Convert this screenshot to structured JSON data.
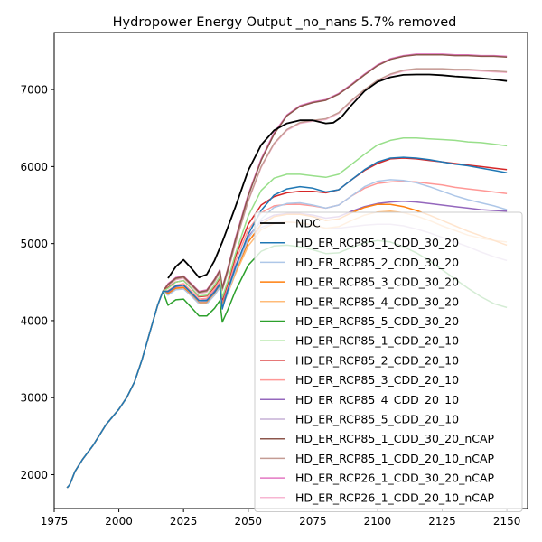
{
  "chart_data": {
    "type": "line",
    "title": "Hydropower Energy Output _no_nans 5.7% removed",
    "xlabel": "",
    "ylabel": "",
    "xlim": [
      1975,
      2158
    ],
    "ylim": [
      1560,
      7740
    ],
    "xticks": [
      1975,
      2000,
      2025,
      2050,
      2075,
      2100,
      2125,
      2150
    ],
    "yticks": [
      2000,
      3000,
      4000,
      5000,
      6000,
      7000
    ],
    "grid": false,
    "legend_position": "lower-right",
    "base": {
      "x": [
        1980,
        1981,
        1983,
        1986,
        1990,
        1995,
        2000,
        2003,
        2006,
        2009,
        2012,
        2015,
        2017,
        2019
      ],
      "y": [
        1830,
        1870,
        2040,
        2200,
        2380,
        2650,
        2850,
        3000,
        3200,
        3500,
        3850,
        4200,
        4380,
        4520
      ]
    },
    "series": [
      {
        "name": "NDC",
        "color": "#000000",
        "x": [
          2019,
          2022,
          2025,
          2028,
          2031,
          2034,
          2037,
          2040,
          2045,
          2050,
          2055,
          2060,
          2065,
          2070,
          2075,
          2080,
          2083,
          2086,
          2090,
          2095,
          2100,
          2105,
          2110,
          2115,
          2120,
          2125,
          2130,
          2135,
          2140,
          2145,
          2150
        ],
        "y": [
          4550,
          4700,
          4790,
          4680,
          4560,
          4600,
          4780,
          5020,
          5470,
          5950,
          6280,
          6470,
          6560,
          6600,
          6600,
          6560,
          6570,
          6640,
          6800,
          6980,
          7100,
          7160,
          7190,
          7195,
          7195,
          7185,
          7170,
          7160,
          7145,
          7130,
          7110
        ]
      },
      {
        "name": "HD_ER_RCP85_1_CDD_30_20",
        "color": "#1f77b4",
        "x": [
          2019,
          2022,
          2025,
          2028,
          2031,
          2034,
          2037,
          2039,
          2040,
          2042,
          2045,
          2050,
          2055,
          2060,
          2065,
          2070,
          2075,
          2080,
          2085,
          2090,
          2095,
          2100,
          2105,
          2110,
          2115,
          2120,
          2125,
          2130,
          2135,
          2140,
          2145,
          2150
        ],
        "y": [
          4380,
          4450,
          4460,
          4360,
          4260,
          4260,
          4370,
          4470,
          4150,
          4380,
          4680,
          5120,
          5430,
          5630,
          5710,
          5740,
          5720,
          5670,
          5700,
          5830,
          5960,
          6060,
          6110,
          6120,
          6110,
          6090,
          6060,
          6030,
          6010,
          5980,
          5950,
          5920
        ]
      },
      {
        "name": "HD_ER_RCP85_2_CDD_30_20",
        "color": "#aec7e8",
        "x": [
          2019,
          2022,
          2025,
          2028,
          2031,
          2034,
          2037,
          2039,
          2040,
          2042,
          2045,
          2050,
          2055,
          2060,
          2065,
          2070,
          2075,
          2080,
          2085,
          2090,
          2095,
          2100,
          2105,
          2110,
          2115,
          2120,
          2125,
          2130,
          2135,
          2140,
          2145,
          2150
        ],
        "y": [
          4330,
          4400,
          4410,
          4320,
          4220,
          4220,
          4330,
          4430,
          4180,
          4350,
          4640,
          5060,
          5320,
          5470,
          5520,
          5530,
          5500,
          5460,
          5500,
          5620,
          5740,
          5810,
          5830,
          5820,
          5790,
          5740,
          5680,
          5620,
          5570,
          5530,
          5490,
          5440
        ]
      },
      {
        "name": "HD_ER_RCP85_3_CDD_30_20",
        "color": "#ff7f0e",
        "x": [
          2019,
          2022,
          2025,
          2028,
          2031,
          2034,
          2037,
          2039,
          2040,
          2042,
          2045,
          2050,
          2055,
          2060,
          2065,
          2070,
          2075,
          2080,
          2085,
          2090,
          2095,
          2100,
          2105,
          2110,
          2115,
          2120,
          2125,
          2130,
          2135,
          2140,
          2145,
          2150
        ],
        "y": [
          4350,
          4420,
          4430,
          4330,
          4230,
          4230,
          4340,
          4440,
          4200,
          4360,
          4630,
          5020,
          5250,
          5350,
          5380,
          5380,
          5350,
          5300,
          5320,
          5400,
          5470,
          5510,
          5510,
          5480,
          5430,
          5370,
          5300,
          5230,
          5160,
          5100,
          5040,
          4980
        ]
      },
      {
        "name": "HD_ER_RCP85_4_CDD_30_20",
        "color": "#ffbb78",
        "x": [
          2019,
          2022,
          2025,
          2028,
          2031,
          2034,
          2037,
          2039,
          2040,
          2042,
          2045,
          2050,
          2055,
          2060,
          2065,
          2070,
          2075,
          2080,
          2085,
          2090,
          2095,
          2100,
          2105,
          2110,
          2115,
          2120,
          2125,
          2130,
          2135,
          2140,
          2145,
          2150
        ],
        "y": [
          4340,
          4410,
          4420,
          4320,
          4220,
          4220,
          4330,
          4430,
          4190,
          4340,
          4600,
          4970,
          5180,
          5260,
          5280,
          5270,
          5240,
          5200,
          5220,
          5300,
          5370,
          5410,
          5420,
          5400,
          5360,
          5300,
          5230,
          5170,
          5110,
          5070,
          5040,
          5020
        ]
      },
      {
        "name": "HD_ER_RCP85_5_CDD_30_20",
        "color": "#2ca02c",
        "x": [
          2019,
          2022,
          2025,
          2028,
          2031,
          2034,
          2037,
          2039,
          2040,
          2042,
          2045,
          2050,
          2055,
          2060,
          2065,
          2070,
          2075,
          2080,
          2085,
          2090,
          2095,
          2100,
          2105,
          2110,
          2115,
          2120,
          2125,
          2130,
          2135,
          2140,
          2145,
          2150
        ],
        "y": [
          4200,
          4270,
          4280,
          4170,
          4060,
          4060,
          4160,
          4260,
          3980,
          4130,
          4380,
          4720,
          4900,
          4970,
          4980,
          4960,
          4920,
          4870,
          4880,
          4950,
          5010,
          5040,
          5020,
          4960,
          4880,
          4780,
          4660,
          4540,
          4420,
          4310,
          4220,
          4170
        ]
      },
      {
        "name": "HD_ER_RCP85_1_CDD_20_10",
        "color": "#98df8a",
        "x": [
          2019,
          2022,
          2025,
          2028,
          2031,
          2034,
          2037,
          2039,
          2040,
          2042,
          2045,
          2050,
          2055,
          2060,
          2065,
          2070,
          2075,
          2080,
          2085,
          2090,
          2095,
          2100,
          2105,
          2110,
          2115,
          2120,
          2125,
          2130,
          2135,
          2140,
          2145,
          2150
        ],
        "y": [
          4420,
          4500,
          4520,
          4420,
          4320,
          4330,
          4460,
          4570,
          4300,
          4500,
          4860,
          5360,
          5690,
          5850,
          5900,
          5900,
          5880,
          5860,
          5900,
          6030,
          6160,
          6280,
          6340,
          6370,
          6370,
          6360,
          6350,
          6340,
          6320,
          6310,
          6290,
          6270
        ]
      },
      {
        "name": "HD_ER_RCP85_2_CDD_20_10",
        "color": "#d62728",
        "x": [
          2019,
          2022,
          2025,
          2028,
          2031,
          2034,
          2037,
          2039,
          2040,
          2042,
          2045,
          2050,
          2055,
          2060,
          2065,
          2070,
          2075,
          2080,
          2085,
          2090,
          2095,
          2100,
          2105,
          2110,
          2115,
          2120,
          2125,
          2130,
          2135,
          2140,
          2145,
          2150
        ],
        "y": [
          4430,
          4500,
          4520,
          4420,
          4310,
          4320,
          4440,
          4550,
          4270,
          4470,
          4820,
          5250,
          5500,
          5610,
          5660,
          5680,
          5680,
          5660,
          5700,
          5830,
          5950,
          6040,
          6100,
          6110,
          6100,
          6080,
          6060,
          6040,
          6020,
          6000,
          5980,
          5960
        ]
      },
      {
        "name": "HD_ER_RCP85_3_CDD_20_10",
        "color": "#ff9896",
        "x": [
          2019,
          2022,
          2025,
          2028,
          2031,
          2034,
          2037,
          2039,
          2040,
          2042,
          2045,
          2050,
          2055,
          2060,
          2065,
          2070,
          2075,
          2080,
          2085,
          2090,
          2095,
          2100,
          2105,
          2110,
          2115,
          2120,
          2125,
          2130,
          2135,
          2140,
          2145,
          2150
        ],
        "y": [
          4390,
          4460,
          4480,
          4380,
          4280,
          4290,
          4410,
          4510,
          4260,
          4440,
          4760,
          5180,
          5400,
          5490,
          5510,
          5510,
          5490,
          5460,
          5500,
          5620,
          5720,
          5780,
          5800,
          5810,
          5800,
          5780,
          5760,
          5730,
          5710,
          5690,
          5670,
          5650
        ]
      },
      {
        "name": "HD_ER_RCP85_4_CDD_20_10",
        "color": "#9467bd",
        "x": [
          2019,
          2022,
          2025,
          2028,
          2031,
          2034,
          2037,
          2039,
          2040,
          2042,
          2045,
          2050,
          2055,
          2060,
          2065,
          2070,
          2075,
          2080,
          2085,
          2090,
          2095,
          2100,
          2105,
          2110,
          2115,
          2120,
          2125,
          2130,
          2135,
          2140,
          2145,
          2150
        ],
        "y": [
          4370,
          4440,
          4460,
          4360,
          4260,
          4270,
          4390,
          4490,
          4230,
          4400,
          4700,
          5090,
          5290,
          5370,
          5390,
          5390,
          5370,
          5330,
          5350,
          5420,
          5480,
          5520,
          5540,
          5550,
          5540,
          5520,
          5500,
          5480,
          5460,
          5440,
          5430,
          5420
        ]
      },
      {
        "name": "HD_ER_RCP85_5_CDD_20_10",
        "color": "#c5b0d5",
        "x": [
          2019,
          2022,
          2025,
          2028,
          2031,
          2034,
          2037,
          2039,
          2040,
          2042,
          2045,
          2050,
          2055,
          2060,
          2065,
          2070,
          2075,
          2080,
          2085,
          2090,
          2095,
          2100,
          2105,
          2110,
          2115,
          2120,
          2125,
          2130,
          2135,
          2140,
          2145,
          2150
        ],
        "y": [
          4360,
          4430,
          4440,
          4340,
          4240,
          4250,
          4360,
          4460,
          4200,
          4360,
          4650,
          5030,
          5210,
          5270,
          5280,
          5270,
          5240,
          5200,
          5200,
          5220,
          5240,
          5250,
          5250,
          5230,
          5190,
          5140,
          5080,
          5020,
          4960,
          4890,
          4830,
          4780
        ]
      },
      {
        "name": "HD_ER_RCP85_1_CDD_30_20_nCAP",
        "color": "#8c564b",
        "x": [
          2019,
          2022,
          2025,
          2028,
          2031,
          2034,
          2037,
          2039,
          2040,
          2042,
          2045,
          2050,
          2055,
          2060,
          2065,
          2070,
          2075,
          2080,
          2085,
          2090,
          2095,
          2100,
          2105,
          2110,
          2115,
          2120,
          2125,
          2130,
          2135,
          2140,
          2145,
          2150
        ],
        "y": [
          4470,
          4550,
          4570,
          4470,
          4370,
          4390,
          4530,
          4650,
          4420,
          4650,
          5040,
          5620,
          6080,
          6420,
          6660,
          6780,
          6830,
          6860,
          6940,
          7060,
          7190,
          7310,
          7390,
          7430,
          7450,
          7450,
          7450,
          7440,
          7440,
          7430,
          7430,
          7420
        ]
      },
      {
        "name": "HD_ER_RCP85_1_CDD_20_10_nCAP",
        "color": "#c49c94",
        "x": [
          2019,
          2022,
          2025,
          2028,
          2031,
          2034,
          2037,
          2039,
          2040,
          2042,
          2045,
          2050,
          2055,
          2060,
          2065,
          2070,
          2075,
          2080,
          2085,
          2090,
          2095,
          2100,
          2105,
          2110,
          2115,
          2120,
          2125,
          2130,
          2135,
          2140,
          2145,
          2150
        ],
        "y": [
          4460,
          4540,
          4560,
          4460,
          4360,
          4380,
          4510,
          4630,
          4400,
          4620,
          5000,
          5560,
          6000,
          6300,
          6480,
          6570,
          6600,
          6620,
          6700,
          6860,
          7000,
          7120,
          7200,
          7250,
          7270,
          7270,
          7270,
          7260,
          7260,
          7250,
          7240,
          7230
        ]
      },
      {
        "name": "HD_ER_RCP26_1_CDD_30_20_nCAP",
        "color": "#e377c2",
        "x": [
          2019,
          2022,
          2025,
          2028,
          2031,
          2034,
          2037,
          2039,
          2040,
          2042,
          2045,
          2050,
          2055,
          2060,
          2065,
          2070,
          2075,
          2080,
          2085,
          2090,
          2095,
          2100,
          2105,
          2110,
          2115,
          2120,
          2125,
          2130,
          2135,
          2140,
          2145,
          2150
        ],
        "y": [
          4480,
          4560,
          4580,
          4480,
          4380,
          4400,
          4540,
          4660,
          4430,
          4660,
          5060,
          5640,
          6100,
          6440,
          6670,
          6790,
          6840,
          6870,
          6950,
          7070,
          7200,
          7320,
          7400,
          7440,
          7460,
          7460,
          7460,
          7450,
          7450,
          7440,
          7440,
          7430
        ]
      },
      {
        "name": "HD_ER_RCP26_1_CDD_20_10_nCAP",
        "color": "#f7b6d2",
        "x": [
          2019,
          2022,
          2025,
          2028,
          2031,
          2034,
          2037,
          2039,
          2040,
          2042,
          2045,
          2050,
          2055,
          2060,
          2065,
          2070,
          2075,
          2080,
          2085,
          2090,
          2095,
          2100,
          2105,
          2110,
          2115,
          2120,
          2125,
          2130,
          2135,
          2140,
          2145,
          2150
        ],
        "y": [
          4450,
          4530,
          4550,
          4450,
          4350,
          4370,
          4500,
          4620,
          4390,
          4610,
          4990,
          5550,
          5990,
          6290,
          6470,
          6560,
          6590,
          6610,
          6690,
          6850,
          6990,
          7110,
          7190,
          7240,
          7260,
          7260,
          7260,
          7250,
          7250,
          7240,
          7230,
          7220
        ]
      }
    ]
  }
}
